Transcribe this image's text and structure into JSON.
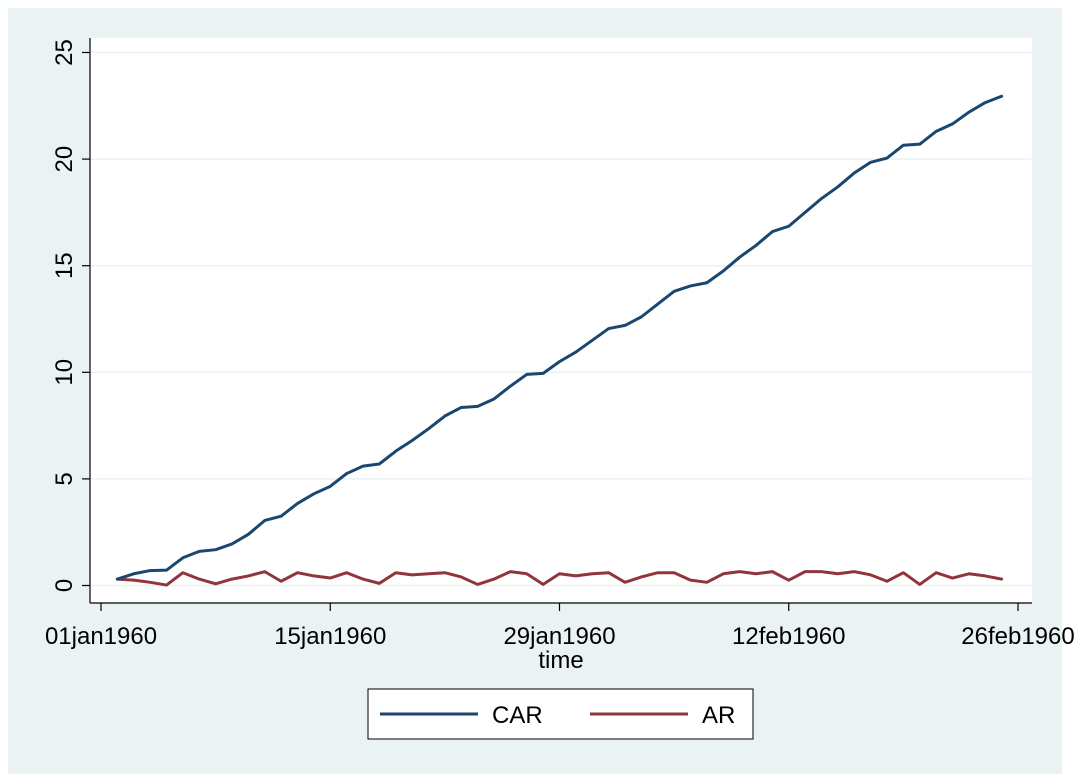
{
  "chart_data": {
    "type": "line",
    "title": "",
    "xlabel": "time",
    "ylabel": "",
    "x_tick_labels": [
      "01jan1960",
      "15jan1960",
      "29jan1960",
      "12feb1960",
      "26feb1960"
    ],
    "y_tick_labels": [
      "0",
      "5",
      "10",
      "15",
      "20",
      "25"
    ],
    "y_ticks": [
      0,
      5,
      10,
      15,
      20,
      25
    ],
    "xlim": [
      "01jan1960",
      "26feb1960"
    ],
    "ylim": [
      0,
      25
    ],
    "grid": "horizontal",
    "legend_position": "bottom",
    "x": [
      "02jan1960",
      "03jan1960",
      "04jan1960",
      "05jan1960",
      "06jan1960",
      "07jan1960",
      "08jan1960",
      "09jan1960",
      "10jan1960",
      "11jan1960",
      "12jan1960",
      "13jan1960",
      "14jan1960",
      "15jan1960",
      "16jan1960",
      "17jan1960",
      "18jan1960",
      "19jan1960",
      "20jan1960",
      "21jan1960",
      "22jan1960",
      "23jan1960",
      "24jan1960",
      "25jan1960",
      "26jan1960",
      "27jan1960",
      "28jan1960",
      "29jan1960",
      "30jan1960",
      "31jan1960",
      "01feb1960",
      "02feb1960",
      "03feb1960",
      "04feb1960",
      "05feb1960",
      "06feb1960",
      "07feb1960",
      "08feb1960",
      "09feb1960",
      "10feb1960",
      "11feb1960",
      "12feb1960",
      "13feb1960",
      "14feb1960",
      "15feb1960",
      "16feb1960",
      "17feb1960",
      "18feb1960",
      "19feb1960",
      "20feb1960",
      "21feb1960",
      "22feb1960",
      "23feb1960",
      "24feb1960",
      "25feb1960"
    ],
    "series": [
      {
        "name": "CAR",
        "color": "#1a476f",
        "values": [
          0.3,
          0.55,
          0.7,
          0.72,
          1.3,
          1.6,
          1.68,
          1.95,
          2.4,
          3.05,
          3.25,
          3.85,
          4.3,
          4.65,
          5.25,
          5.6,
          5.7,
          6.3,
          6.8,
          7.35,
          7.95,
          8.35,
          8.4,
          8.75,
          9.35,
          9.9,
          9.95,
          10.5,
          10.95,
          11.5,
          12.05,
          12.2,
          12.6,
          13.2,
          13.8,
          14.05,
          14.2,
          14.75,
          15.4,
          15.95,
          16.6,
          16.85,
          17.5,
          18.15,
          18.7,
          19.35,
          19.85,
          20.05,
          20.65,
          20.7,
          21.3,
          21.65,
          22.2,
          22.65,
          22.95
        ]
      },
      {
        "name": "AR",
        "color": "#90353b",
        "values": [
          0.3,
          0.25,
          0.15,
          0.02,
          0.6,
          0.3,
          0.08,
          0.3,
          0.45,
          0.65,
          0.2,
          0.6,
          0.45,
          0.35,
          0.6,
          0.3,
          0.1,
          0.6,
          0.5,
          0.55,
          0.6,
          0.4,
          0.05,
          0.3,
          0.65,
          0.55,
          0.05,
          0.55,
          0.45,
          0.55,
          0.6,
          0.15,
          0.4,
          0.6,
          0.6,
          0.25,
          0.15,
          0.55,
          0.65,
          0.55,
          0.65,
          0.25,
          0.65,
          0.65,
          0.55,
          0.65,
          0.5,
          0.2,
          0.6,
          0.05,
          0.6,
          0.35,
          0.55,
          0.45,
          0.3
        ]
      }
    ]
  }
}
